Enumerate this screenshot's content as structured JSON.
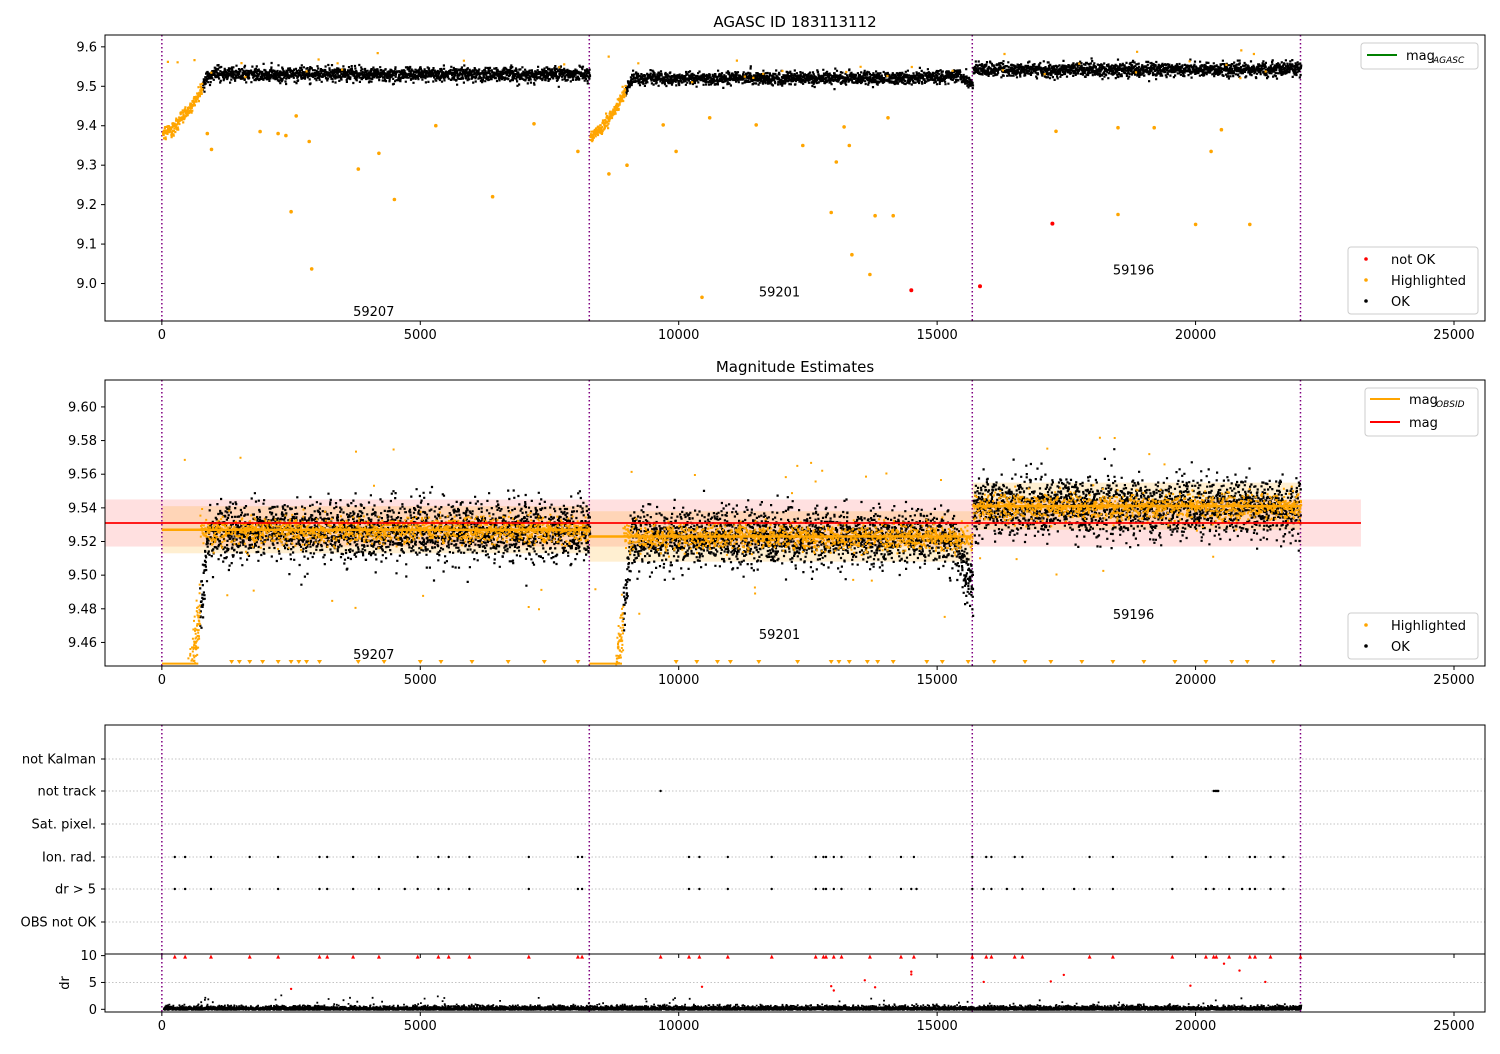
{
  "chart_data": [
    {
      "type": "scatter",
      "title": "AGASC ID 183113112",
      "xlim": [
        -1100,
        25600
      ],
      "ylim": [
        8.905,
        9.63
      ],
      "x_ticks": [
        0,
        5000,
        10000,
        15000,
        20000,
        25000
      ],
      "y_ticks": [
        9.0,
        9.1,
        9.2,
        9.3,
        9.4,
        9.5,
        9.6
      ],
      "segment_boundaries": [
        0,
        8270,
        15680,
        22030
      ],
      "segments": [
        {
          "label": "59207",
          "x_start": 0,
          "x_end": 8270,
          "label_x": 4100,
          "label_y": 8.93
        },
        {
          "label": "59201",
          "x_start": 8270,
          "x_end": 15680,
          "label_x": 11950,
          "label_y": 8.98
        },
        {
          "label": "59196",
          "x_start": 15680,
          "x_end": 22030,
          "label_x": 18800,
          "label_y": 9.035
        }
      ],
      "legend_top": {
        "placement": "top-right",
        "entries": [
          {
            "label": "mag",
            "subscript": "AGASC",
            "color": "#008000",
            "kind": "line"
          }
        ]
      },
      "legend_bottom": {
        "placement": "lower-right",
        "entries": [
          {
            "label": "not OK",
            "color": "#ff0000",
            "kind": "marker"
          },
          {
            "label": "Highlighted",
            "color": "#ffa500",
            "kind": "marker"
          },
          {
            "label": "OK",
            "color": "#000000",
            "kind": "marker"
          }
        ]
      },
      "not_ok_points": [
        [
          14500,
          8.983
        ],
        [
          15830,
          8.993
        ],
        [
          17230,
          9.152
        ]
      ],
      "highlighted_outliers": [
        [
          880,
          9.38
        ],
        [
          960,
          9.34
        ],
        [
          1900,
          9.385
        ],
        [
          2250,
          9.38
        ],
        [
          2400,
          9.375
        ],
        [
          2500,
          9.182
        ],
        [
          2600,
          9.425
        ],
        [
          2850,
          9.36
        ],
        [
          2900,
          9.037
        ],
        [
          3800,
          9.29
        ],
        [
          4200,
          9.33
        ],
        [
          4500,
          9.213
        ],
        [
          5300,
          9.4
        ],
        [
          6400,
          9.22
        ],
        [
          7200,
          9.405
        ],
        [
          8050,
          9.335
        ],
        [
          8650,
          9.278
        ],
        [
          9000,
          9.3
        ],
        [
          9700,
          9.402
        ],
        [
          9950,
          9.335
        ],
        [
          10450,
          8.965
        ],
        [
          10600,
          9.42
        ],
        [
          11500,
          9.402
        ],
        [
          12400,
          9.35
        ],
        [
          12950,
          9.18
        ],
        [
          13050,
          9.308
        ],
        [
          13200,
          9.397
        ],
        [
          13300,
          9.35
        ],
        [
          13350,
          9.073
        ],
        [
          13700,
          9.023
        ],
        [
          13800,
          9.172
        ],
        [
          14050,
          9.42
        ],
        [
          14150,
          9.172
        ],
        [
          17300,
          9.386
        ],
        [
          18500,
          9.395
        ],
        [
          18500,
          9.175
        ],
        [
          19200,
          9.395
        ],
        [
          20000,
          9.15
        ],
        [
          20300,
          9.335
        ],
        [
          20500,
          9.39
        ],
        [
          21050,
          9.15
        ]
      ]
    },
    {
      "type": "scatter",
      "title": "Magnitude Estimates",
      "xlim": [
        -1100,
        25600
      ],
      "ylim": [
        9.446,
        9.616
      ],
      "x_ticks": [
        0,
        5000,
        10000,
        15000,
        20000,
        25000
      ],
      "y_ticks": [
        9.46,
        9.48,
        9.5,
        9.52,
        9.54,
        9.56,
        9.58,
        9.6
      ],
      "segment_boundaries": [
        0,
        8270,
        15680,
        22030
      ],
      "segments": [
        {
          "label": "59207",
          "x_start": 0,
          "x_end": 8270,
          "label_x": 4100,
          "label_y": 9.453,
          "mag_obsid": 9.527,
          "band": [
            9.513,
            9.541
          ]
        },
        {
          "label": "59201",
          "x_start": 8270,
          "x_end": 15680,
          "label_x": 11950,
          "label_y": 9.465,
          "mag_obsid": 9.523,
          "band": [
            9.508,
            9.538
          ]
        },
        {
          "label": "59196",
          "x_start": 15680,
          "x_end": 22030,
          "label_x": 18800,
          "label_y": 9.477,
          "mag_obsid": 9.541,
          "band": [
            9.527,
            9.555
          ]
        }
      ],
      "overall_mag": {
        "value": 9.531,
        "band": [
          9.517,
          9.545
        ],
        "x_start": -1100,
        "x_end": 23200
      },
      "legend_top": {
        "placement": "top-right",
        "entries": [
          {
            "label": "mag",
            "subscript": "OBSID",
            "color": "#ffa500",
            "kind": "line"
          },
          {
            "label": "mag",
            "subscript": "",
            "color": "#ff0000",
            "kind": "line"
          }
        ]
      },
      "legend_bottom": {
        "placement": "lower-right",
        "entries": [
          {
            "label": "Highlighted",
            "color": "#ffa500",
            "kind": "marker"
          },
          {
            "label": "OK",
            "color": "#000000",
            "kind": "marker"
          }
        ]
      },
      "clipped_markers_x": [
        1350,
        1500,
        1700,
        1950,
        2250,
        2500,
        2650,
        2800,
        3050,
        3800,
        4300,
        5000,
        5400,
        6000,
        6700,
        7400,
        8050,
        9950,
        10350,
        10750,
        11000,
        11550,
        12300,
        12950,
        13100,
        13300,
        13650,
        13850,
        14150,
        14800,
        15100,
        15600,
        16100,
        16700,
        17200,
        17800,
        18400,
        19000,
        19600,
        20200,
        20700,
        21000,
        21500
      ]
    },
    {
      "type": "scatter",
      "title": "",
      "xlim": [
        -1100,
        25600
      ],
      "x_ticks": [
        0,
        5000,
        10000,
        15000,
        20000,
        25000
      ],
      "segment_boundaries": [
        0,
        8270,
        15680,
        22030
      ],
      "flag_rows": [
        "not Kalman",
        "not track",
        "Sat. pixel.",
        "Ion. rad.",
        "dr > 5",
        "OBS not OK"
      ],
      "flag_points": {
        "not track": [
          9650,
          20350,
          20380,
          20400,
          20420,
          20440
        ],
        "Ion. rad.": [
          250,
          450,
          950,
          1700,
          2250,
          3050,
          3200,
          3700,
          4200,
          4950,
          5350,
          5550,
          5950,
          7100,
          8050,
          8130,
          10200,
          10400,
          10950,
          11800,
          12650,
          12800,
          12850,
          13000,
          13150,
          13700,
          14300,
          14550,
          15680,
          15950,
          16050,
          16500,
          16650,
          17950,
          18400,
          19550,
          20200,
          20650,
          21050,
          21150,
          21450,
          21700
        ],
        "dr > 5": [
          250,
          450,
          950,
          1700,
          2250,
          3050,
          3200,
          3700,
          4200,
          4700,
          4950,
          5350,
          5550,
          5950,
          7100,
          8050,
          8130,
          10200,
          10400,
          10950,
          11800,
          12650,
          12800,
          12850,
          13000,
          13150,
          13700,
          14300,
          14500,
          14600,
          15680,
          15900,
          16050,
          16350,
          16650,
          17050,
          17650,
          17950,
          18400,
          19550,
          20200,
          20350,
          20650,
          20900,
          21050,
          21150,
          21450,
          21700
        ]
      }
    },
    {
      "type": "scatter",
      "title": "",
      "ylabel": "dr",
      "xlim": [
        -1100,
        25600
      ],
      "ylim": [
        -0.5,
        10.3
      ],
      "x_ticks": [
        0,
        5000,
        10000,
        15000,
        20000,
        25000
      ],
      "y_ticks": [
        0,
        5,
        10
      ],
      "segment_boundaries": [
        0,
        8270,
        15680,
        22030
      ],
      "clipped_red_x": [
        250,
        450,
        950,
        1700,
        2250,
        3050,
        3200,
        3700,
        4200,
        4950,
        5350,
        5550,
        5950,
        7100,
        8050,
        8130,
        9650,
        10200,
        10400,
        10950,
        11800,
        12650,
        12800,
        12850,
        13000,
        13150,
        13700,
        14300,
        14550,
        15680,
        15950,
        16050,
        16500,
        16650,
        17950,
        18400,
        19550,
        20200,
        20350,
        20400,
        20650,
        21050,
        21150,
        21450,
        22030
      ],
      "red_points": [
        [
          2500,
          3.8
        ],
        [
          10450,
          4.2
        ],
        [
          12950,
          4.3
        ],
        [
          13000,
          3.5
        ],
        [
          13600,
          5.4
        ],
        [
          13800,
          4.1
        ],
        [
          14500,
          7.0
        ],
        [
          14500,
          6.5
        ],
        [
          15900,
          5.1
        ],
        [
          17200,
          5.2
        ],
        [
          17450,
          6.4
        ],
        [
          19900,
          4.4
        ],
        [
          20550,
          8.5
        ],
        [
          20850,
          7.2
        ],
        [
          21350,
          5.1
        ]
      ],
      "black_points_shape": "dense band of ~22000 points near dr 0.1-0.6 spanning x 0-22030, sparse scatter up to dr 3"
    }
  ]
}
